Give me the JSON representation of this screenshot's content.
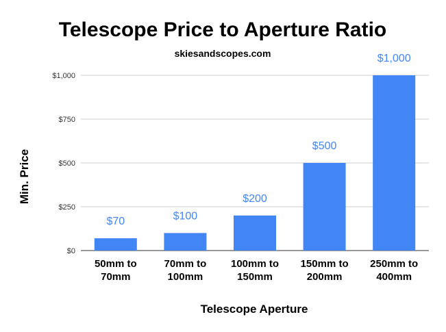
{
  "chart_data": {
    "type": "bar",
    "title": "Telescope Price to Aperture Ratio",
    "subtitle": "skiesandscopes.com",
    "xlabel": "Telescope Aperture",
    "ylabel": "Min. Price",
    "categories": [
      [
        "50mm to",
        "70mm"
      ],
      [
        "70mm to",
        "100mm"
      ],
      [
        "100mm to",
        "150mm"
      ],
      [
        "150mm to",
        "200mm"
      ],
      [
        "250mm to",
        "400mm"
      ]
    ],
    "values": [
      70,
      100,
      200,
      500,
      1000
    ],
    "data_labels": [
      "$70",
      "$100",
      "$200",
      "$500",
      "$1,000"
    ],
    "ylim": [
      0,
      1000
    ],
    "yticks": [
      0,
      250,
      500,
      750,
      1000
    ],
    "ytick_labels": [
      "$0",
      "$250",
      "$500",
      "$750",
      "$1,000"
    ],
    "grid": true,
    "legend": "none",
    "colors": {
      "bar": "#4285f4",
      "data_label": "#4285f4"
    }
  }
}
